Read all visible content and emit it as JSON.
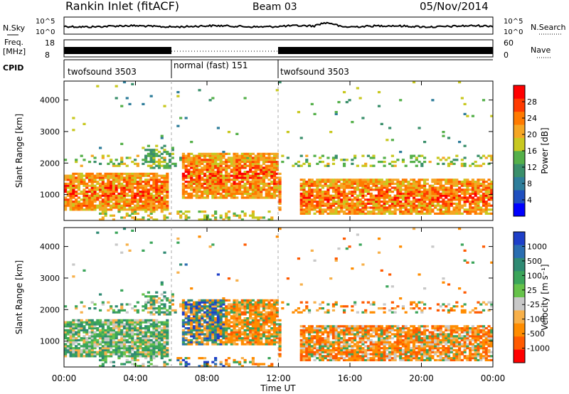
{
  "header": {
    "station": "Rankin Inlet (fitACF)",
    "beam": "Beam 03",
    "date": "05/Nov/2014"
  },
  "noise_panel": {
    "left_label": "N.Sky",
    "left_ticks": [
      "10^5",
      "10^0"
    ],
    "right_ticks": [
      "10^5",
      "10^0"
    ],
    "right_label": "N.Search"
  },
  "freq_panel": {
    "left_label_line1": "Freq.",
    "left_label_line2": "[MHz]",
    "left_ticks": [
      "18",
      "8"
    ],
    "right_ticks": [
      "60",
      "0"
    ],
    "right_label": "Nave"
  },
  "cpid_panel": {
    "label": "CPID",
    "segments": [
      {
        "label": "twofsound 3503",
        "start": "00:00",
        "end": "06:00"
      },
      {
        "label": "normal (fast) 151",
        "start": "06:00",
        "end": "12:00"
      },
      {
        "label": "twofsound 3503",
        "start": "12:00",
        "end": "24:00"
      }
    ]
  },
  "chart_data": [
    {
      "type": "heatmap",
      "name": "power",
      "ylabel": "Slant Range [km]",
      "yticks": [
        1000,
        2000,
        3000,
        4000
      ],
      "ylim": [
        180,
        4600
      ],
      "xlim": [
        0,
        24
      ],
      "colorbar": {
        "label": "Power [dB]",
        "ticks": [
          "4",
          "8",
          "12",
          "16",
          "20",
          "24",
          "28"
        ],
        "colors": [
          "#0000ff",
          "#1f4fbf",
          "#2e7d9a",
          "#3a8f6b",
          "#55b04a",
          "#c8c820",
          "#f5a623",
          "#ff7a00",
          "#ff3a00",
          "#ff0000"
        ]
      }
    },
    {
      "type": "heatmap",
      "name": "velocity",
      "ylabel": "Slant Range [km]",
      "yticks": [
        1000,
        2000,
        3000,
        4000
      ],
      "ylim": [
        180,
        4600
      ],
      "xlim": [
        0,
        24
      ],
      "xlabel": "Time UT",
      "xticks": [
        "00:00",
        "04:00",
        "08:00",
        "12:00",
        "16:00",
        "20:00",
        "00:00"
      ],
      "colorbar": {
        "label": "Velocity [m s⁻¹]",
        "ticks": [
          "1000",
          "500",
          "100",
          "25",
          "-25",
          "-100",
          "-500",
          "-1000"
        ],
        "colors": [
          "#1e3fc8",
          "#2a6db0",
          "#2f8a73",
          "#3ba55a",
          "#66c24a",
          "#c8c8c8",
          "#f7b04a",
          "#ff8c00",
          "#ff5a00",
          "#ff0000"
        ]
      }
    }
  ],
  "colors": {
    "noise_trace": "#000000",
    "missing": "#ffffff",
    "gray_flag": "#c8c8c8"
  }
}
